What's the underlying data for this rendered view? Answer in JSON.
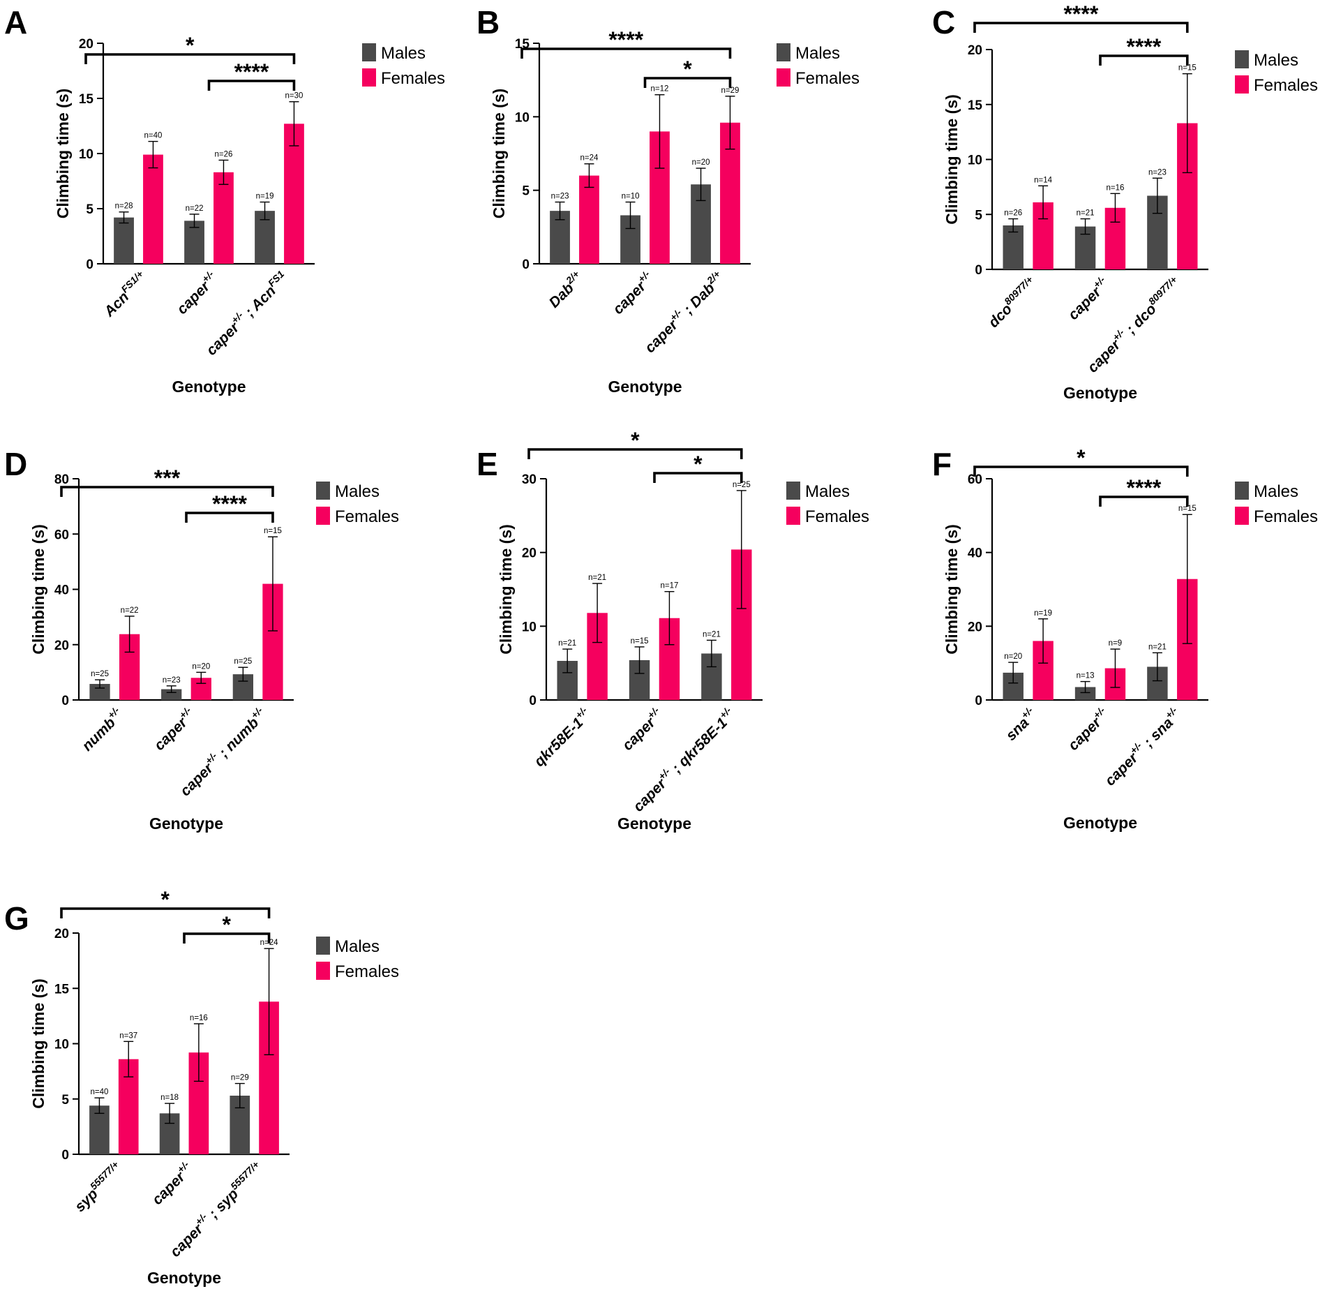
{
  "figure": {
    "colors": {
      "males": "#4a4a4a",
      "females": "#f5005e",
      "axis": "#000000"
    },
    "legend": {
      "males": "Males",
      "females": "Females"
    }
  },
  "chart_data": [
    {
      "panel": "A",
      "type": "bar",
      "ylabel": "Climbing time (s)",
      "xlabel": "Genotype",
      "ylim": [
        0,
        20
      ],
      "yticks": [
        0,
        5,
        10,
        15,
        20
      ],
      "categories": [
        {
          "base": "Acn",
          "sup": "FS1/+",
          "tail": "",
          "tail_sup": ""
        },
        {
          "base": "caper",
          "sup": "+/-",
          "tail": "",
          "tail_sup": ""
        },
        {
          "base": "caper",
          "sup": "+/-",
          "tail": " ; Acn",
          "tail_sup": "FS1"
        }
      ],
      "series": [
        {
          "name": "Males",
          "values": [
            4.2,
            3.9,
            4.8
          ],
          "err": [
            0.5,
            0.6,
            0.8
          ],
          "n": [
            "n=28",
            "n=22",
            "n=19"
          ]
        },
        {
          "name": "Females",
          "values": [
            9.9,
            8.3,
            12.7
          ],
          "err": [
            1.2,
            1.1,
            2.0
          ],
          "n": [
            "n=40",
            "n=26",
            "n=30"
          ]
        }
      ],
      "brackets": [
        {
          "from": 0,
          "to": 2,
          "label": "*"
        },
        {
          "from": 1,
          "to": 2,
          "label": "****"
        }
      ]
    },
    {
      "panel": "B",
      "type": "bar",
      "ylabel": "Climbing time (s)",
      "xlabel": "Genotype",
      "ylim": [
        0,
        15
      ],
      "yticks": [
        0,
        5,
        10,
        15
      ],
      "categories": [
        {
          "base": "Dab",
          "sup": "2/+",
          "tail": "",
          "tail_sup": ""
        },
        {
          "base": "caper",
          "sup": "+/-",
          "tail": "",
          "tail_sup": ""
        },
        {
          "base": "caper",
          "sup": "+/-",
          "tail": " ; Dab",
          "tail_sup": "2/+"
        }
      ],
      "series": [
        {
          "name": "Males",
          "values": [
            3.6,
            3.3,
            5.4
          ],
          "err": [
            0.6,
            0.9,
            1.1
          ],
          "n": [
            "n=23",
            "n=10",
            "n=20"
          ]
        },
        {
          "name": "Females",
          "values": [
            6.0,
            9.0,
            9.6
          ],
          "err": [
            0.8,
            2.5,
            1.8
          ],
          "n": [
            "n=24",
            "n=12",
            "n=29"
          ]
        }
      ],
      "brackets": [
        {
          "from": 0,
          "to": 2,
          "label": "****"
        },
        {
          "from": 1,
          "to": 2,
          "label": "*"
        }
      ]
    },
    {
      "panel": "C",
      "type": "bar",
      "ylabel": "Climbing time (s)",
      "xlabel": "Genotype",
      "ylim": [
        0,
        20
      ],
      "yticks": [
        0,
        5,
        10,
        15,
        20
      ],
      "categories": [
        {
          "base": "dco",
          "sup": "80977/+",
          "tail": "",
          "tail_sup": ""
        },
        {
          "base": "caper",
          "sup": "+/-",
          "tail": "",
          "tail_sup": ""
        },
        {
          "base": "caper",
          "sup": "+/-",
          "tail": " ; dco",
          "tail_sup": "80977/+"
        }
      ],
      "series": [
        {
          "name": "Males",
          "values": [
            4.0,
            3.9,
            6.7
          ],
          "err": [
            0.6,
            0.7,
            1.6
          ],
          "n": [
            "n=26",
            "n=21",
            "n=23"
          ]
        },
        {
          "name": "Females",
          "values": [
            6.1,
            5.6,
            13.3
          ],
          "err": [
            1.5,
            1.3,
            4.5
          ],
          "n": [
            "n=14",
            "n=16",
            "n=15"
          ]
        }
      ],
      "brackets": [
        {
          "from": 0,
          "to": 2,
          "label": "****"
        },
        {
          "from": 1,
          "to": 2,
          "label": "****"
        }
      ]
    },
    {
      "panel": "D",
      "type": "bar",
      "ylabel": "Climbing time (s)",
      "xlabel": "Genotype",
      "ylim": [
        0,
        80
      ],
      "yticks": [
        0,
        20,
        40,
        60,
        80
      ],
      "categories": [
        {
          "base": "numb",
          "sup": "+/-",
          "tail": "",
          "tail_sup": ""
        },
        {
          "base": "caper",
          "sup": "+/-",
          "tail": "",
          "tail_sup": ""
        },
        {
          "base": "caper",
          "sup": "+/-",
          "tail": " ; numb",
          "tail_sup": "+/-"
        }
      ],
      "series": [
        {
          "name": "Males",
          "values": [
            5.8,
            3.9,
            9.3
          ],
          "err": [
            1.5,
            1.2,
            2.5
          ],
          "n": [
            "n=25",
            "n=23",
            "n=25"
          ]
        },
        {
          "name": "Females",
          "values": [
            23.8,
            8.0,
            42.0
          ],
          "err": [
            6.5,
            2.0,
            17.0
          ],
          "n": [
            "n=22",
            "n=20",
            "n=15"
          ]
        }
      ],
      "brackets": [
        {
          "from": 0,
          "to": 2,
          "label": "***"
        },
        {
          "from": 1,
          "to": 2,
          "label": "****"
        }
      ]
    },
    {
      "panel": "E",
      "type": "bar",
      "ylabel": "Climbing time (s)",
      "xlabel": "Genotype",
      "ylim": [
        0,
        30
      ],
      "yticks": [
        0,
        10,
        20,
        30
      ],
      "categories": [
        {
          "base": "qkr58E-1",
          "sup": "+/-",
          "tail": "",
          "tail_sup": ""
        },
        {
          "base": "caper",
          "sup": "+/-",
          "tail": "",
          "tail_sup": ""
        },
        {
          "base": "caper",
          "sup": "+/-",
          "tail": " ; qkr58E-1",
          "tail_sup": "+/-"
        }
      ],
      "series": [
        {
          "name": "Males",
          "values": [
            5.3,
            5.4,
            6.3
          ],
          "err": [
            1.6,
            1.8,
            1.8
          ],
          "n": [
            "n=21",
            "n=15",
            "n=21"
          ]
        },
        {
          "name": "Females",
          "values": [
            11.8,
            11.1,
            20.4
          ],
          "err": [
            4.0,
            3.6,
            8.0
          ],
          "n": [
            "n=21",
            "n=17",
            "n=25"
          ]
        }
      ],
      "brackets": [
        {
          "from": 0,
          "to": 2,
          "label": "*"
        },
        {
          "from": 1,
          "to": 2,
          "label": "*"
        }
      ]
    },
    {
      "panel": "F",
      "type": "bar",
      "ylabel": "Climbing time (s)",
      "xlabel": "Genotype",
      "ylim": [
        0,
        60
      ],
      "yticks": [
        0,
        20,
        40,
        60
      ],
      "categories": [
        {
          "base": "sna",
          "sup": "+/-",
          "tail": "",
          "tail_sup": ""
        },
        {
          "base": "caper",
          "sup": "+/-",
          "tail": "",
          "tail_sup": ""
        },
        {
          "base": "caper",
          "sup": "+/-",
          "tail": " ; sna",
          "tail_sup": "+/-"
        }
      ],
      "series": [
        {
          "name": "Males",
          "values": [
            7.4,
            3.5,
            9.0
          ],
          "err": [
            2.8,
            1.5,
            3.8
          ],
          "n": [
            "n=20",
            "n=13",
            "n=21"
          ]
        },
        {
          "name": "Females",
          "values": [
            16.0,
            8.6,
            32.8
          ],
          "err": [
            6.0,
            5.2,
            17.5
          ],
          "n": [
            "n=19",
            "n=9",
            "n=15"
          ]
        }
      ],
      "brackets": [
        {
          "from": 0,
          "to": 2,
          "label": "*"
        },
        {
          "from": 1,
          "to": 2,
          "label": "****"
        }
      ]
    },
    {
      "panel": "G",
      "type": "bar",
      "ylabel": "Climbing time (s)",
      "xlabel": "Genotype",
      "ylim": [
        0,
        20
      ],
      "yticks": [
        0,
        5,
        10,
        15,
        20
      ],
      "categories": [
        {
          "base": "syp",
          "sup": "55577/+",
          "tail": "",
          "tail_sup": ""
        },
        {
          "base": "caper",
          "sup": "+/-",
          "tail": "",
          "tail_sup": ""
        },
        {
          "base": "caper",
          "sup": "+/-",
          "tail": " ; syp",
          "tail_sup": "55577/+"
        }
      ],
      "series": [
        {
          "name": "Males",
          "values": [
            4.4,
            3.7,
            5.3
          ],
          "err": [
            0.7,
            0.9,
            1.1
          ],
          "n": [
            "n=40",
            "n=18",
            "n=29"
          ]
        },
        {
          "name": "Females",
          "values": [
            8.6,
            9.2,
            13.8
          ],
          "err": [
            1.6,
            2.6,
            4.8
          ],
          "n": [
            "n=37",
            "n=16",
            "n=24"
          ]
        }
      ],
      "brackets": [
        {
          "from": 0,
          "to": 2,
          "label": "*"
        },
        {
          "from": 1,
          "to": 2,
          "label": "*"
        }
      ]
    }
  ]
}
